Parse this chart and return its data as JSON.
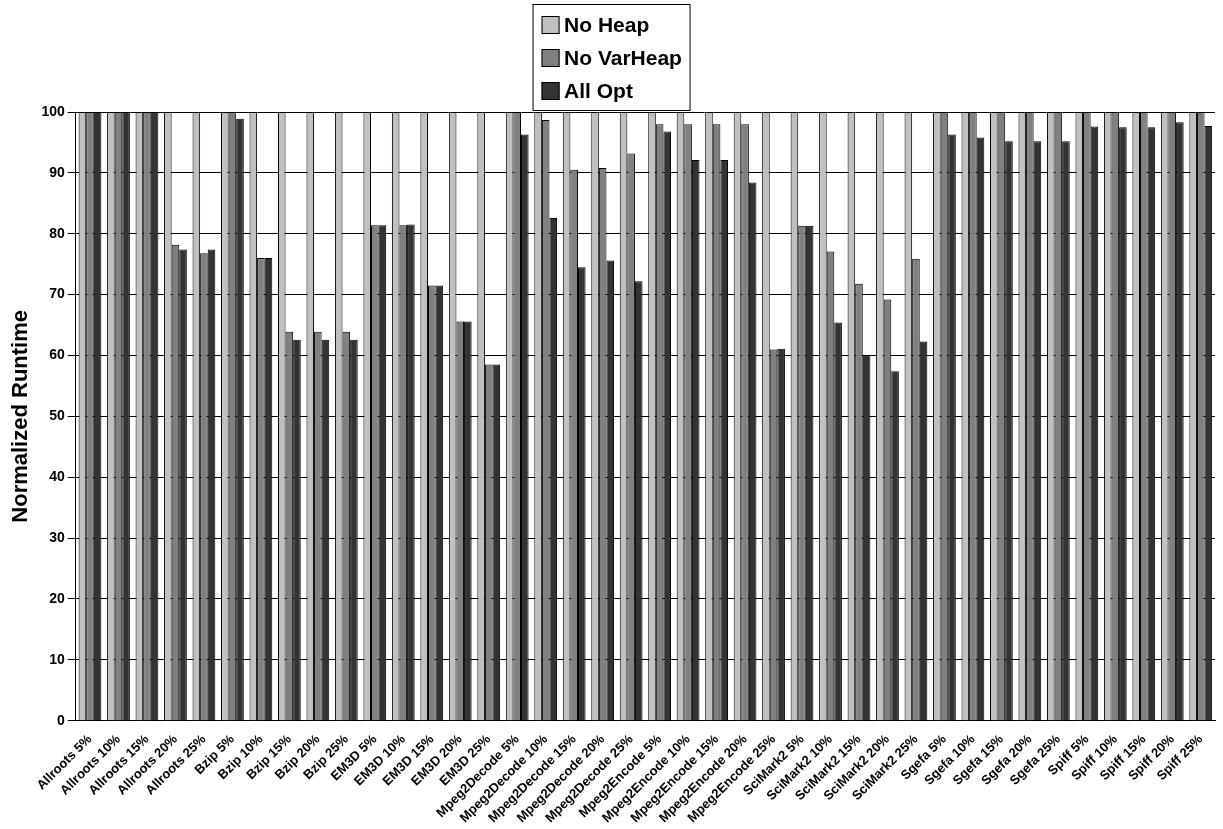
{
  "chart_data": {
    "type": "bar",
    "ylabel": "Normalized Runtime",
    "categories": [
      "Allroots 5%",
      "Allroots 10%",
      "Allroots 15%",
      "Allroots 20%",
      "Allroots 25%",
      "Bzip 5%",
      "Bzip 10%",
      "Bzip 15%",
      "Bzip 20%",
      "Bzip 25%",
      "EM3D 5%",
      "EM3D 10%",
      "EM3D 15%",
      "EM3D 20%",
      "EM3D 25%",
      "Mpeg2Decode 5%",
      "Mpeg2Decode 10%",
      "Mpeg2Decode 15%",
      "Mpeg2Decode 20%",
      "Mpeg2Decode 25%",
      "Mpeg2Encode 5%",
      "Mpeg2Encode 10%",
      "Mpeg2Encode 15%",
      "Mpeg2Encode 20%",
      "Mpeg2Encode 25%",
      "SciMark2 5%",
      "SciMark2 10%",
      "SciMark2 15%",
      "SciMark2 20%",
      "SciMark2 25%",
      "Sgefa 5%",
      "Sgefa 10%",
      "Sgefa 15%",
      "Sgefa 20%",
      "Sgefa 25%",
      "Spiff 5%",
      "Spiff 10%",
      "Spiff 15%",
      "Spiff 20%",
      "Spiff 25%"
    ],
    "series": [
      {
        "name": "No Heap",
        "color": "#c0c0c0",
        "values": [
          100,
          100,
          100,
          100,
          100,
          100,
          100,
          100,
          100,
          100,
          100,
          100,
          100,
          100,
          100,
          100,
          100,
          100,
          100,
          100,
          100,
          100,
          100,
          100,
          100,
          100,
          100,
          100,
          100,
          100,
          100,
          100,
          100,
          100,
          100,
          100,
          100,
          100,
          100,
          100
        ]
      },
      {
        "name": "No VarHeap",
        "color": "#808080",
        "values": [
          100,
          100,
          100,
          78.2,
          76.8,
          100,
          76,
          63.9,
          63.9,
          63.9,
          81.4,
          81.4,
          71.5,
          65.6,
          58.5,
          100,
          98.7,
          90.5,
          90.8,
          93.2,
          98,
          98,
          98,
          98,
          61,
          81.3,
          77.1,
          71.8,
          69.2,
          75.9,
          100,
          100,
          100,
          100,
          100,
          100,
          100,
          100,
          100,
          100
        ]
      },
      {
        "name": "All Opt",
        "color": "#333333",
        "values": [
          100,
          100,
          100,
          77.4,
          77.4,
          98.9,
          76,
          62.6,
          62.6,
          62.6,
          81.4,
          81.5,
          71.5,
          65.6,
          58.5,
          96.3,
          82.6,
          74.5,
          75.6,
          72.2,
          96.8,
          92.1,
          92.1,
          88.4,
          61.1,
          81.3,
          65.4,
          60.1,
          57.4,
          62.3,
          96.3,
          95.8,
          95.2,
          95.2,
          95.2,
          97.6,
          97.5,
          97.5,
          98.3,
          97.7
        ]
      }
    ],
    "ylim": [
      0,
      100
    ],
    "yticks": [
      0,
      10,
      20,
      30,
      40,
      50,
      60,
      70,
      80,
      90,
      100
    ],
    "grid": "y",
    "legend": "top"
  }
}
